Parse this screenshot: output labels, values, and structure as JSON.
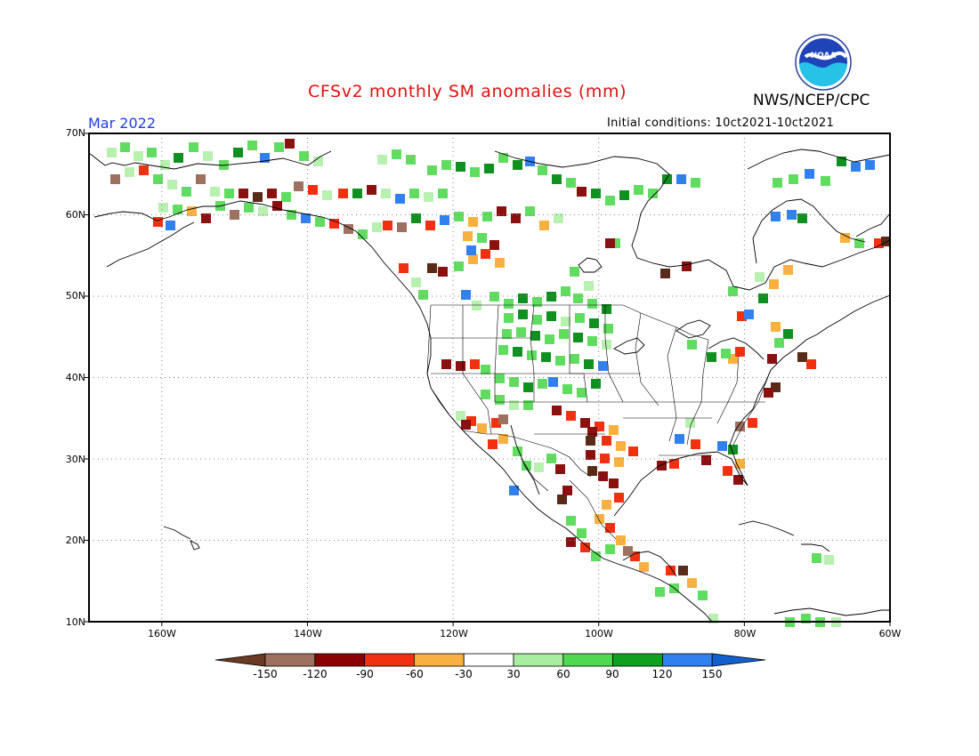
{
  "header": {
    "title": "CFSv2 monthly SM anomalies (mm)",
    "agency": "NWS/NCEP/CPC",
    "valid_month": "Mar 2022",
    "initial_conditions": "Initial conditions: 10ct2021-10ct2021",
    "logo_text": "NOAA"
  },
  "map": {
    "lat_labels": [
      "70N",
      "60N",
      "50N",
      "40N",
      "30N",
      "20N",
      "10N"
    ],
    "lon_labels": [
      "160W",
      "140W",
      "120W",
      "100W",
      "80W",
      "60W"
    ],
    "lat_values": [
      70,
      60,
      50,
      40,
      30,
      20,
      10
    ],
    "lon_values": [
      -160,
      -140,
      -120,
      -100,
      -80,
      -60
    ],
    "lat_range": [
      10,
      70
    ],
    "lon_range": [
      -170,
      -60
    ]
  },
  "colorbar": {
    "labels": [
      "-150",
      "-120",
      "-90",
      "-60",
      "-30",
      "30",
      "60",
      "90",
      "120",
      "150"
    ],
    "colors": [
      "#6b3a22",
      "#9e7060",
      "#8b0000",
      "#f03010",
      "#f8b040",
      "#ffffff",
      "#a8eda0",
      "#50d850",
      "#10a020",
      "#3080f0",
      "#1060d0"
    ]
  },
  "anomaly_colors": {
    "-150": "#5a2a18",
    "-120": "#9e7060",
    "-90": "#8b1010",
    "-60": "#f03010",
    "-30": "#f8b040",
    "30": "#b8f0b0",
    "60": "#60dc60",
    "90": "#109020",
    "120": "#3080f0"
  }
}
